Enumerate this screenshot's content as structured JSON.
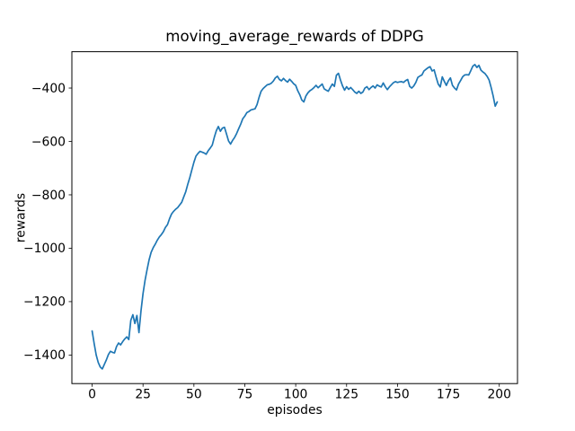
{
  "figure": {
    "background": "#ffffff",
    "spine_color": "#000000",
    "tick_color": "#000000",
    "text_color": "#000000"
  },
  "chart_data": {
    "type": "line",
    "title": "moving_average_rewards of DDPG",
    "xlabel": "episodes",
    "ylabel": "rewards",
    "grid": false,
    "xlim": [
      -9.95,
      208.95
    ],
    "ylim": [
      -1507,
      -264
    ],
    "xticks": [
      {
        "value": 0,
        "label": "0"
      },
      {
        "value": 25,
        "label": "25"
      },
      {
        "value": 50,
        "label": "50"
      },
      {
        "value": 75,
        "label": "75"
      },
      {
        "value": 100,
        "label": "100"
      },
      {
        "value": 125,
        "label": "125"
      },
      {
        "value": 150,
        "label": "150"
      },
      {
        "value": 175,
        "label": "175"
      },
      {
        "value": 200,
        "label": "200"
      }
    ],
    "yticks": [
      {
        "value": -400,
        "label": "−400"
      },
      {
        "value": -600,
        "label": "−600"
      },
      {
        "value": -800,
        "label": "−800"
      },
      {
        "value": -1000,
        "label": "−1000"
      },
      {
        "value": -1200,
        "label": "−1200"
      },
      {
        "value": -1400,
        "label": "−1400"
      }
    ],
    "series": [
      {
        "name": "moving_average_rewards",
        "color": "#1f77b4",
        "x_start": 0,
        "x_step": 1,
        "values": [
          -1310,
          -1357,
          -1400,
          -1428,
          -1445,
          -1452,
          -1435,
          -1418,
          -1398,
          -1386,
          -1390,
          -1392,
          -1368,
          -1355,
          -1362,
          -1350,
          -1340,
          -1332,
          -1342,
          -1270,
          -1249,
          -1282,
          -1252,
          -1316,
          -1235,
          -1170,
          -1120,
          -1080,
          -1043,
          -1015,
          -998,
          -985,
          -970,
          -958,
          -949,
          -938,
          -922,
          -912,
          -890,
          -872,
          -862,
          -854,
          -848,
          -838,
          -828,
          -808,
          -788,
          -760,
          -735,
          -706,
          -678,
          -655,
          -645,
          -637,
          -640,
          -643,
          -648,
          -635,
          -625,
          -614,
          -585,
          -560,
          -544,
          -562,
          -550,
          -547,
          -572,
          -598,
          -610,
          -596,
          -585,
          -570,
          -552,
          -535,
          -515,
          -505,
          -492,
          -488,
          -482,
          -480,
          -478,
          -462,
          -435,
          -412,
          -402,
          -395,
          -388,
          -386,
          -382,
          -374,
          -362,
          -356,
          -368,
          -373,
          -364,
          -372,
          -378,
          -367,
          -375,
          -384,
          -390,
          -410,
          -425,
          -445,
          -452,
          -430,
          -418,
          -410,
          -405,
          -398,
          -390,
          -399,
          -392,
          -385,
          -403,
          -408,
          -412,
          -398,
          -385,
          -394,
          -352,
          -345,
          -370,
          -392,
          -408,
          -395,
          -405,
          -398,
          -406,
          -415,
          -420,
          -412,
          -420,
          -415,
          -400,
          -395,
          -406,
          -398,
          -392,
          -400,
          -388,
          -393,
          -396,
          -381,
          -395,
          -406,
          -396,
          -388,
          -380,
          -376,
          -379,
          -377,
          -376,
          -379,
          -372,
          -368,
          -394,
          -400,
          -392,
          -379,
          -360,
          -355,
          -351,
          -336,
          -330,
          -324,
          -320,
          -336,
          -332,
          -360,
          -385,
          -396,
          -358,
          -375,
          -390,
          -373,
          -362,
          -390,
          -400,
          -407,
          -385,
          -372,
          -358,
          -351,
          -350,
          -351,
          -335,
          -318,
          -312,
          -323,
          -315,
          -333,
          -340,
          -346,
          -356,
          -370,
          -398,
          -430,
          -468,
          -452
        ]
      }
    ]
  }
}
